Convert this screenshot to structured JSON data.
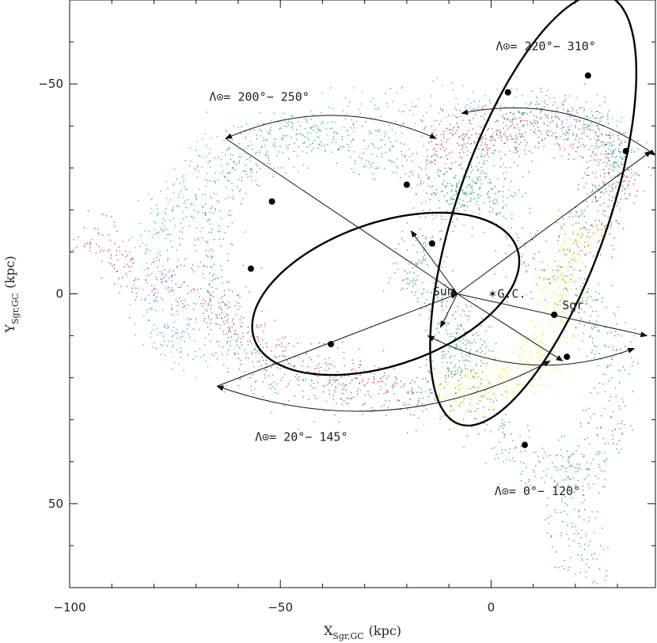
{
  "chart_data": {
    "type": "scatter",
    "xlabel": "X",
    "xlabel_sub": "Sgr,GC",
    "xlabel_unit": "(kpc)",
    "ylabel": "Y",
    "ylabel_sub": "Sgr,GC",
    "ylabel_unit": "(kpc)",
    "xlim": [
      -100,
      39
    ],
    "ylim": [
      70,
      -70
    ],
    "xticks": [
      -100,
      -50,
      0
    ],
    "xtick_labels": [
      "−100",
      "−50",
      "0"
    ],
    "yticks": [
      -50,
      0,
      50
    ],
    "ytick_labels": [
      "−50",
      "0",
      "50"
    ],
    "grid": false,
    "points": [
      {
        "name": "Sun",
        "x": -8,
        "y": 0
      },
      {
        "name": "G.C.",
        "x": 0,
        "y": 0
      },
      {
        "name": "Sgr",
        "x": 15,
        "y": 5
      }
    ],
    "annotations": [
      {
        "text": "Λ⊙= 200°− 250°",
        "x": -55,
        "y": -46
      },
      {
        "text": "Λ⊙= 220°− 310°",
        "x": 13,
        "y": -58
      },
      {
        "text": "Λ⊙= 20°− 145°",
        "x": -45,
        "y": 35
      },
      {
        "text": "Λ⊙= 0°− 120°",
        "x": 11,
        "y": 48
      }
    ],
    "orbits": [
      {
        "name": "leading-orbit",
        "cx": -25,
        "cy": 0,
        "rx": 33,
        "ry": 17,
        "angle_deg": -19,
        "markers": [
          [
            -57,
            -6
          ],
          [
            -52,
            -22
          ],
          [
            -20,
            -26
          ],
          [
            -14,
            -12
          ],
          [
            15,
            5
          ],
          [
            -38,
            12
          ]
        ]
      },
      {
        "name": "trailing-orbit",
        "cx": 10,
        "cy": -20,
        "rx": 18,
        "ry": 54,
        "angle_deg": 19,
        "markers": [
          [
            4,
            -48
          ],
          [
            23,
            -52
          ],
          [
            32,
            -34
          ],
          [
            15,
            5
          ],
          [
            18,
            15
          ],
          [
            8,
            36
          ]
        ]
      }
    ],
    "streams": [
      {
        "name": "blue",
        "color": "#2aa8dd",
        "path": [
          [
            34,
            -28
          ],
          [
            25,
            -40
          ],
          [
            10,
            -44
          ],
          [
            -12,
            -44
          ],
          [
            -35,
            -42
          ],
          [
            -55,
            -38
          ],
          [
            -70,
            -30
          ],
          [
            -78,
            -18
          ],
          [
            -80,
            -5
          ],
          [
            -78,
            8
          ],
          [
            -70,
            15
          ]
        ]
      },
      {
        "name": "magenta",
        "color": "#dd2277",
        "path": [
          [
            24,
            -12
          ],
          [
            30,
            -25
          ],
          [
            25,
            -38
          ],
          [
            12,
            -41
          ],
          [
            2,
            -38
          ],
          [
            -8,
            -38
          ],
          [
            -14,
            -35
          ]
        ]
      },
      {
        "name": "magenta-trail",
        "color": "#dd2277",
        "path": [
          [
            -20,
            22
          ],
          [
            -35,
            20
          ],
          [
            -48,
            15
          ],
          [
            -60,
            8
          ],
          [
            -72,
            0
          ],
          [
            -85,
            -5
          ],
          [
            -95,
            -15
          ]
        ]
      },
      {
        "name": "green",
        "color": "#22a050",
        "path": [
          [
            12,
            -2
          ],
          [
            2,
            -22
          ],
          [
            -8,
            -26
          ],
          [
            -18,
            -30
          ],
          [
            -30,
            -35
          ],
          [
            -45,
            -38
          ],
          [
            -58,
            -32
          ],
          [
            -66,
            -20
          ],
          [
            -67,
            -5
          ],
          [
            -63,
            10
          ],
          [
            -55,
            20
          ],
          [
            -35,
            23
          ],
          [
            -18,
            25
          ],
          [
            -8,
            20
          ],
          [
            -8,
            5
          ],
          [
            -6,
            15
          ],
          [
            -2,
            30
          ],
          [
            10,
            42
          ],
          [
            25,
            40
          ],
          [
            30,
            20
          ],
          [
            25,
            5
          ],
          [
            18,
            -5
          ],
          [
            22,
            -20
          ],
          [
            30,
            -30
          ],
          [
            25,
            -40
          ],
          [
            10,
            -42
          ],
          [
            0,
            -35
          ],
          [
            -5,
            -25
          ],
          [
            -12,
            -20
          ],
          [
            -20,
            -5
          ],
          [
            -10,
            5
          ]
        ]
      },
      {
        "name": "green-tail",
        "color": "#22a050",
        "path": [
          [
            18,
            40
          ],
          [
            20,
            55
          ],
          [
            22,
            70
          ]
        ]
      },
      {
        "name": "yellow",
        "color": "#f0e800",
        "path": [
          [
            22,
            -15
          ],
          [
            18,
            -6
          ],
          [
            15,
            5
          ],
          [
            12,
            15
          ],
          [
            5,
            20
          ],
          [
            -5,
            22
          ],
          [
            -12,
            27
          ]
        ]
      }
    ],
    "arrows": [
      {
        "from": [
          -63,
          -37
        ],
        "to": [
          -13,
          -37
        ],
        "curved": true
      },
      {
        "from": [
          -7,
          -43
        ],
        "to": [
          39,
          -33
        ],
        "curved": true
      },
      {
        "from": [
          -65,
          22
        ],
        "to": [
          14,
          16
        ],
        "curved": true
      },
      {
        "from": [
          -15,
          10
        ],
        "to": [
          34,
          13
        ],
        "curved": true
      },
      {
        "from": [
          -63,
          -37
        ],
        "to": [
          -8,
          0
        ],
        "curved": false
      },
      {
        "from": [
          -8,
          0
        ],
        "to": [
          38,
          -34
        ],
        "curved": false
      },
      {
        "from": [
          -65,
          22
        ],
        "to": [
          -8,
          0
        ],
        "curved": false
      },
      {
        "from": [
          -8,
          0
        ],
        "to": [
          37,
          10
        ],
        "curved": false
      },
      {
        "from": [
          -8,
          0
        ],
        "to": [
          17,
          16
        ],
        "curved": false
      },
      {
        "from": [
          -8,
          0
        ],
        "to": [
          -19,
          -15
        ],
        "curved": false
      },
      {
        "from": [
          -8,
          0
        ],
        "to": [
          -12,
          8
        ],
        "curved": false
      }
    ]
  }
}
